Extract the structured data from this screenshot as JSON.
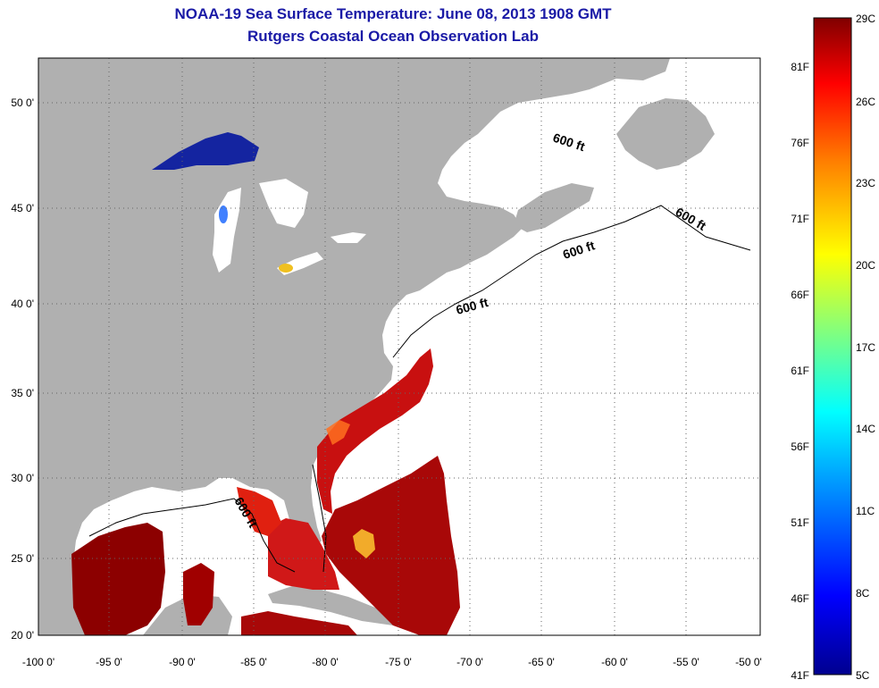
{
  "header": {
    "title": "NOAA-19 Sea Surface Temperature:  June 08, 2013 1908 GMT",
    "subtitle": "Rutgers Coastal Ocean Observation Lab"
  },
  "map": {
    "lon_range": [
      -100,
      -50
    ],
    "lat_range": [
      20,
      52
    ],
    "lon_ticks": [
      "-100 0'",
      "-95 0'",
      "-90 0'",
      "-85 0'",
      "-80 0'",
      "-75 0'",
      "-70 0'",
      "-65 0'",
      "-60 0'",
      "-55 0'",
      "-50 0'"
    ],
    "lat_ticks": [
      "20 0'",
      "25 0'",
      "30 0'",
      "35 0'",
      "40 0'",
      "45 0'",
      "50 0'"
    ],
    "land_color": "#b0b0b0",
    "no_data_color": "#ffffff",
    "grid": "dotted",
    "isobath_label": "600 ft",
    "isobath_labels": [
      "600 ft",
      "600 ft",
      "600 ft",
      "600 ft",
      "600 ft"
    ]
  },
  "colorbar": {
    "celsius_ticks": [
      "29C",
      "26C",
      "23C",
      "20C",
      "17C",
      "14C",
      "11C",
      "8C",
      "5C"
    ],
    "fahrenheit_ticks": [
      "81F",
      "76F",
      "71F",
      "66F",
      "61F",
      "56F",
      "51F",
      "46F",
      "41F"
    ],
    "colormap": "jet",
    "colors": [
      "#00008f",
      "#0000ff",
      "#00a0ff",
      "#00ffff",
      "#80ff80",
      "#ffff00",
      "#ff8000",
      "#ff0000",
      "#800000"
    ]
  }
}
